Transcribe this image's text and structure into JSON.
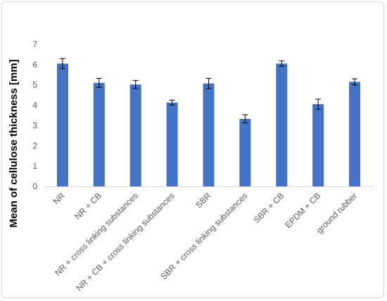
{
  "chart_data": {
    "type": "bar",
    "title": "",
    "xlabel": "",
    "ylabel": "Mean of cellulose thickness [mm]",
    "ylim": [
      0,
      7
    ],
    "yticks": [
      0,
      1,
      2,
      3,
      4,
      5,
      6,
      7
    ],
    "grid": false,
    "legend": "none",
    "bar_color": "#4472c4",
    "categories": [
      "NR",
      "NR + CB",
      "NR + cross linking substances",
      "NR + CB + cross linking substances",
      "SBR",
      "SBR + cross linking substances",
      "SBR + CB",
      "EPDM + CB",
      "ground rubber"
    ],
    "values": [
      6.05,
      5.1,
      5.02,
      4.13,
      5.07,
      3.33,
      6.05,
      4.05,
      5.15
    ],
    "errors": [
      0.25,
      0.22,
      0.2,
      0.12,
      0.25,
      0.2,
      0.13,
      0.25,
      0.15
    ]
  }
}
